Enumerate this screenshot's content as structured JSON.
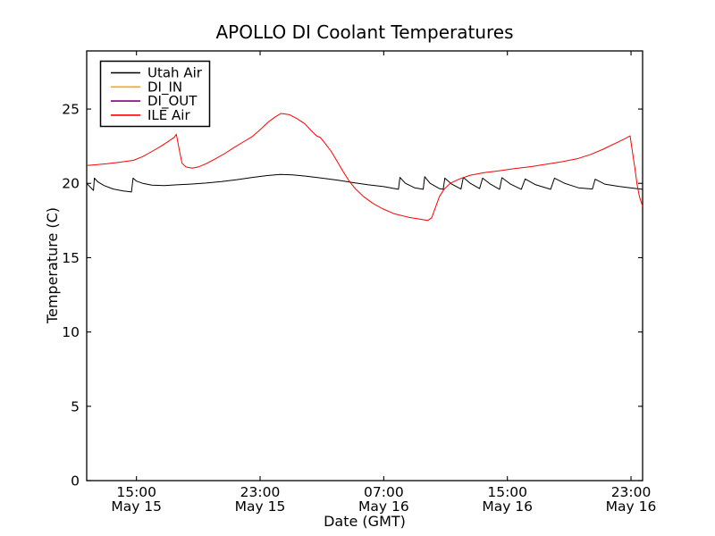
{
  "chart_data": {
    "type": "line",
    "title": "APOLLO DI Coolant Temperatures",
    "xlabel": "Date (GMT)",
    "ylabel": "Temperature (C)",
    "grid": false,
    "legend_position": "upper left",
    "x_unit": "hours since May 15 00:00 GMT",
    "xlim": [
      11.78,
      47.75
    ],
    "ylim": [
      0,
      28.91
    ],
    "y_ticks": [
      0,
      5,
      10,
      15,
      20,
      25
    ],
    "x_ticks": [
      {
        "t": 15,
        "time": "15:00",
        "date": "May 15"
      },
      {
        "t": 23,
        "time": "23:00",
        "date": "May 15"
      },
      {
        "t": 31,
        "time": "07:00",
        "date": "May 16"
      },
      {
        "t": 39,
        "time": "15:00",
        "date": "May 16"
      },
      {
        "t": 47,
        "time": "23:00",
        "date": "May 16"
      }
    ],
    "series": [
      {
        "name": "Utah Air",
        "color": "#000000",
        "points": [
          [
            11.78,
            20.0
          ],
          [
            12.05,
            19.7
          ],
          [
            12.22,
            19.52
          ],
          [
            12.28,
            20.35
          ],
          [
            12.5,
            20.1
          ],
          [
            12.9,
            19.85
          ],
          [
            13.5,
            19.62
          ],
          [
            14.1,
            19.5
          ],
          [
            14.68,
            19.42
          ],
          [
            14.78,
            20.35
          ],
          [
            15.0,
            20.15
          ],
          [
            15.4,
            20.0
          ],
          [
            16.0,
            19.88
          ],
          [
            16.8,
            19.85
          ],
          [
            17.6,
            19.9
          ],
          [
            18.5,
            19.95
          ],
          [
            19.5,
            20.02
          ],
          [
            20.5,
            20.12
          ],
          [
            21.5,
            20.25
          ],
          [
            22.5,
            20.4
          ],
          [
            23.4,
            20.52
          ],
          [
            24.3,
            20.6
          ],
          [
            25.1,
            20.57
          ],
          [
            26.0,
            20.48
          ],
          [
            27.0,
            20.35
          ],
          [
            28.0,
            20.22
          ],
          [
            29.0,
            20.05
          ],
          [
            30.0,
            19.9
          ],
          [
            31.0,
            19.78
          ],
          [
            31.95,
            19.6
          ],
          [
            32.05,
            20.4
          ],
          [
            32.4,
            20.0
          ],
          [
            33.0,
            19.7
          ],
          [
            33.55,
            19.6
          ],
          [
            33.65,
            20.45
          ],
          [
            34.0,
            20.0
          ],
          [
            34.6,
            19.65
          ],
          [
            34.85,
            19.6
          ],
          [
            34.95,
            20.35
          ],
          [
            35.4,
            19.95
          ],
          [
            36.0,
            19.62
          ],
          [
            36.15,
            20.4
          ],
          [
            36.6,
            20.0
          ],
          [
            37.2,
            19.65
          ],
          [
            37.4,
            20.35
          ],
          [
            37.9,
            19.95
          ],
          [
            38.5,
            19.6
          ],
          [
            38.65,
            20.38
          ],
          [
            39.2,
            19.95
          ],
          [
            39.9,
            19.6
          ],
          [
            40.15,
            20.3
          ],
          [
            40.8,
            19.92
          ],
          [
            41.8,
            19.6
          ],
          [
            42.05,
            20.35
          ],
          [
            42.7,
            20.0
          ],
          [
            43.6,
            19.7
          ],
          [
            44.5,
            19.62
          ],
          [
            44.68,
            20.28
          ],
          [
            45.3,
            19.95
          ],
          [
            46.2,
            19.8
          ],
          [
            47.1,
            19.68
          ],
          [
            47.75,
            19.6
          ]
        ]
      },
      {
        "name": "DI_IN",
        "color": "#ffa500",
        "points": []
      },
      {
        "name": "DI_OUT",
        "color": "#800080",
        "points": []
      },
      {
        "name": "ILE Air",
        "color": "#ff0000",
        "points": [
          [
            11.78,
            21.2
          ],
          [
            12.4,
            21.25
          ],
          [
            13.1,
            21.32
          ],
          [
            13.9,
            21.42
          ],
          [
            14.8,
            21.55
          ],
          [
            15.4,
            21.8
          ],
          [
            16.0,
            22.15
          ],
          [
            16.6,
            22.5
          ],
          [
            17.1,
            22.85
          ],
          [
            17.45,
            23.1
          ],
          [
            17.58,
            23.3
          ],
          [
            17.8,
            22.1
          ],
          [
            17.95,
            21.35
          ],
          [
            18.2,
            21.1
          ],
          [
            18.6,
            21.02
          ],
          [
            19.0,
            21.1
          ],
          [
            19.5,
            21.32
          ],
          [
            20.1,
            21.65
          ],
          [
            20.7,
            22.0
          ],
          [
            21.3,
            22.4
          ],
          [
            21.9,
            22.78
          ],
          [
            22.5,
            23.15
          ],
          [
            23.0,
            23.6
          ],
          [
            23.5,
            24.1
          ],
          [
            23.95,
            24.45
          ],
          [
            24.35,
            24.7
          ],
          [
            24.9,
            24.62
          ],
          [
            25.4,
            24.35
          ],
          [
            25.9,
            24.0
          ],
          [
            26.35,
            23.5
          ],
          [
            26.65,
            23.2
          ],
          [
            26.9,
            23.08
          ],
          [
            27.2,
            22.7
          ],
          [
            27.6,
            22.15
          ],
          [
            28.0,
            21.45
          ],
          [
            28.4,
            20.75
          ],
          [
            28.8,
            20.1
          ],
          [
            29.2,
            19.6
          ],
          [
            29.7,
            19.1
          ],
          [
            30.3,
            18.65
          ],
          [
            30.9,
            18.3
          ],
          [
            31.7,
            17.95
          ],
          [
            32.6,
            17.72
          ],
          [
            33.4,
            17.58
          ],
          [
            33.85,
            17.5
          ],
          [
            34.1,
            17.68
          ],
          [
            34.35,
            18.4
          ],
          [
            34.6,
            19.1
          ],
          [
            34.9,
            19.6
          ],
          [
            35.3,
            20.0
          ],
          [
            35.9,
            20.3
          ],
          [
            36.6,
            20.55
          ],
          [
            37.5,
            20.72
          ],
          [
            38.5,
            20.85
          ],
          [
            39.5,
            21.0
          ],
          [
            40.5,
            21.12
          ],
          [
            41.5,
            21.28
          ],
          [
            42.5,
            21.45
          ],
          [
            43.5,
            21.65
          ],
          [
            44.4,
            21.95
          ],
          [
            45.2,
            22.3
          ],
          [
            46.0,
            22.7
          ],
          [
            46.6,
            23.0
          ],
          [
            46.94,
            23.2
          ],
          [
            47.08,
            22.2
          ],
          [
            47.25,
            21.0
          ],
          [
            47.4,
            19.9
          ],
          [
            47.55,
            19.1
          ],
          [
            47.75,
            18.45
          ]
        ]
      }
    ]
  }
}
